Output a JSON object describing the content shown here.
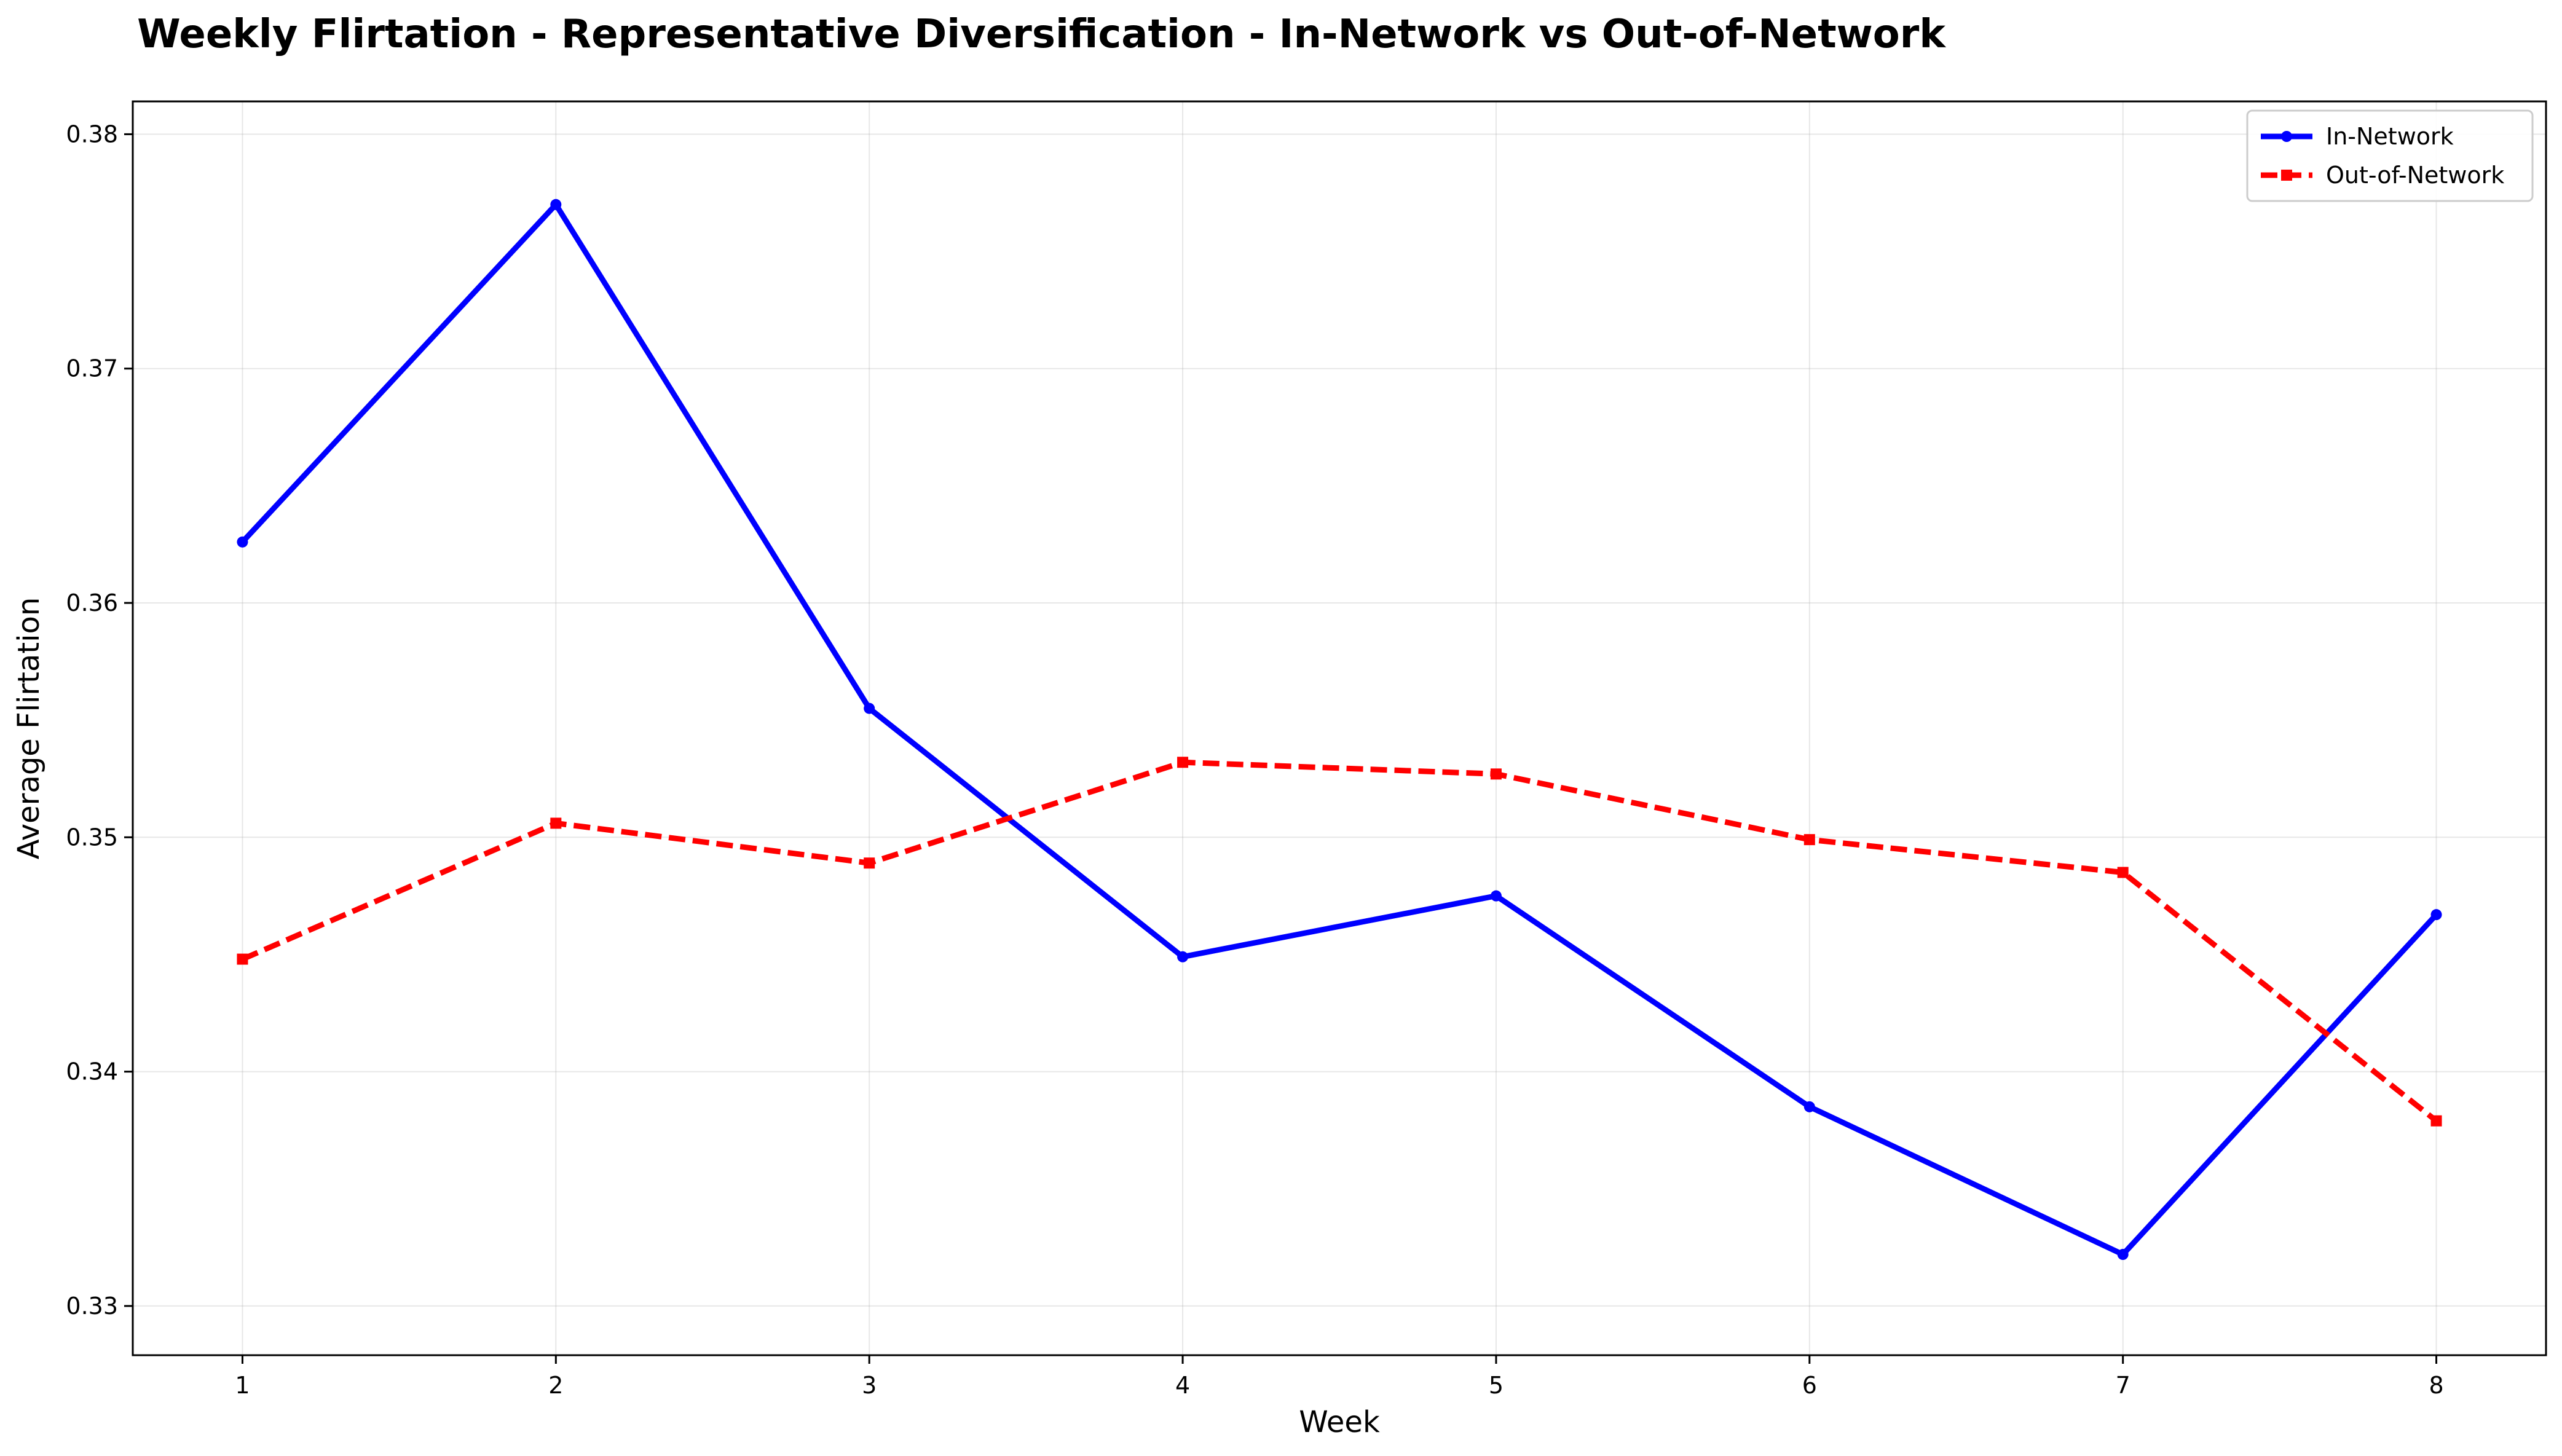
{
  "chart_data": {
    "type": "line",
    "title": "Weekly Flirtation - Representative Diversification - In-Network vs Out-of-Network",
    "xlabel": "Week",
    "ylabel": "Average Flirtation",
    "x": [
      1,
      2,
      3,
      4,
      5,
      6,
      7,
      8
    ],
    "x_tick_labels": [
      "1",
      "2",
      "3",
      "4",
      "5",
      "6",
      "7",
      "8"
    ],
    "y_tick_labels": [
      "0.33",
      "0.34",
      "0.35",
      "0.36",
      "0.37",
      "0.38"
    ],
    "xlim": [
      0.65,
      8.35
    ],
    "ylim": [
      0.3279,
      0.3814
    ],
    "grid": true,
    "legend_position": "upper right",
    "series": [
      {
        "name": "In-Network",
        "values": [
          0.3626,
          0.377,
          0.3555,
          0.3449,
          0.3475,
          0.3385,
          0.3322,
          0.3467
        ],
        "color": "#0000ff",
        "line_style": "solid",
        "marker": "circle"
      },
      {
        "name": "Out-of-Network",
        "values": [
          0.3448,
          0.3506,
          0.3489,
          0.3532,
          0.3527,
          0.3499,
          0.3485,
          0.3379
        ],
        "color": "#ff0000",
        "line_style": "dashed",
        "marker": "square"
      }
    ]
  }
}
